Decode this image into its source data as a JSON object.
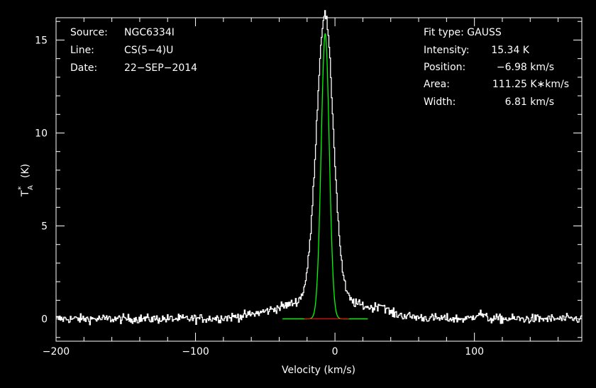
{
  "chart_data": {
    "type": "line",
    "xlabel": "Velocity (km/s)",
    "ylabel_main": "T",
    "ylabel_sup": "*",
    "ylabel_sub": "A",
    "ylabel_unit": "(K)",
    "xlim": [
      -200,
      177
    ],
    "ylim": [
      -1.2,
      16.2
    ],
    "x_ticks": [
      -200,
      -100,
      0,
      100
    ],
    "x_tick_labels": [
      "−200",
      "−100",
      "0",
      "100"
    ],
    "y_ticks": [
      0,
      5,
      10,
      15
    ],
    "y_tick_labels": [
      "0",
      "5",
      "10",
      "15"
    ],
    "grid": false,
    "spectrum": {
      "color": "#ffffff",
      "features": [
        {
          "center": -7.5,
          "amplitude": 15.3,
          "width": 6.0
        },
        {
          "center": -8.0,
          "amplitude": 1.1,
          "width": 30.0
        },
        {
          "center": 33,
          "amplitude": 0.35,
          "width": 3.0
        },
        {
          "center": 103,
          "amplitude": 0.3,
          "width": 3.0
        }
      ],
      "noise_rms": 0.12,
      "channel_width": 0.6
    },
    "series": [
      {
        "type": "gaussian-fit",
        "color": "#00ff00",
        "center": -6.98,
        "amplitude": 15.34,
        "fwhm": 6.81
      },
      {
        "type": "baseline",
        "color": "#ff0000",
        "x": [
          -22,
          10
        ],
        "y": [
          0,
          0
        ]
      }
    ]
  },
  "source_info": {
    "source_label": "Source:",
    "source_value": "NGC6334I",
    "line_label": "Line:",
    "line_value": "CS(5−4)U",
    "date_label": "Date:",
    "date_value": "22−SEP−2014"
  },
  "fit_info": {
    "fit_type": "Fit type: GAUSS",
    "intensity_label": "Intensity:",
    "intensity_value": "15.34 K",
    "position_label": "Position:",
    "position_value": "−6.98 km/s",
    "area_label": "Area:",
    "area_value": "111.25 K∗km/s",
    "width_label": "Width:",
    "width_value": "6.81 km/s"
  },
  "colors": {
    "background": "#000000",
    "axes": "#ffffff",
    "fit": "#00ff00",
    "baseline": "#ff0000"
  }
}
